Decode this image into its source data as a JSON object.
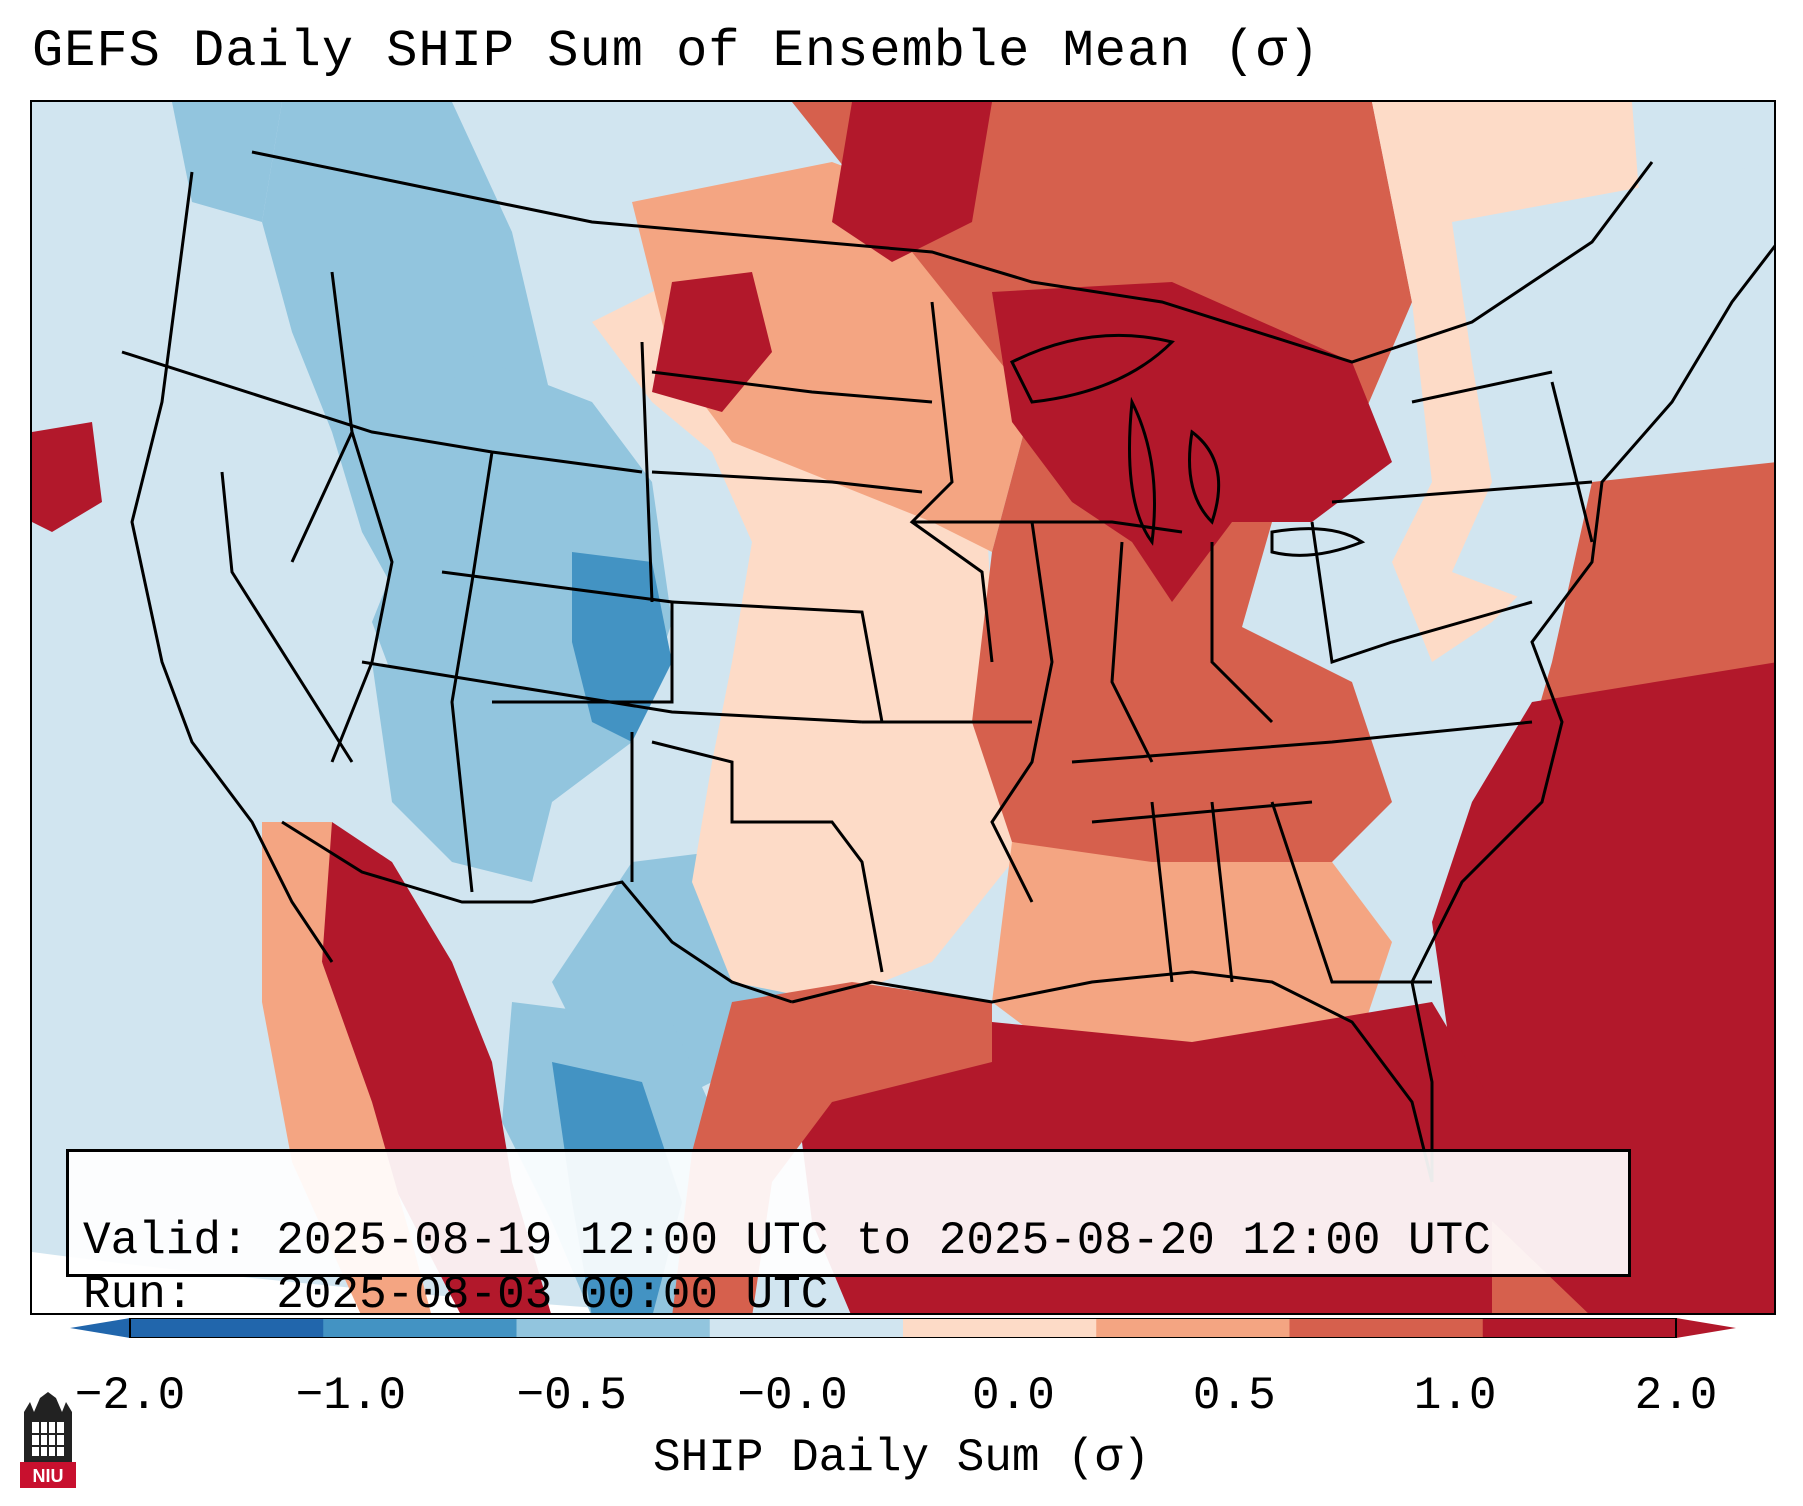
{
  "title": "GEFS Daily SHIP Sum of Ensemble Mean (σ)",
  "info": {
    "valid_label": "Valid:",
    "valid_value": "2025-08-19 12:00 UTC to 2025-08-20 12:00 UTC",
    "run_label": "Run:",
    "run_value": "2025-08-03 00:00 UTC"
  },
  "colorbar": {
    "label": "SHIP Daily Sum (σ)",
    "ticks": [
      "−2.0",
      "−1.0",
      "−0.5",
      "−0.0",
      "0.0",
      "0.5",
      "1.0",
      "2.0"
    ],
    "colors": [
      "#2166ac",
      "#4393c3",
      "#92c5de",
      "#d1e5f0",
      "#fddbc7",
      "#f4a582",
      "#d6604d",
      "#b2182b"
    ],
    "extend_low_color": "#2166ac",
    "extend_high_color": "#b2182b"
  },
  "logo": {
    "text": "NIU",
    "color": "#c8102e"
  },
  "legend_levels": {
    "strong_neg": "#4393c3",
    "neg": "#92c5de",
    "weak_neg": "#d1e5f0",
    "weak_pos": "#fddbc7",
    "pos": "#f4a582",
    "strong_pos": "#d6604d",
    "extreme_pos": "#b2182b"
  }
}
